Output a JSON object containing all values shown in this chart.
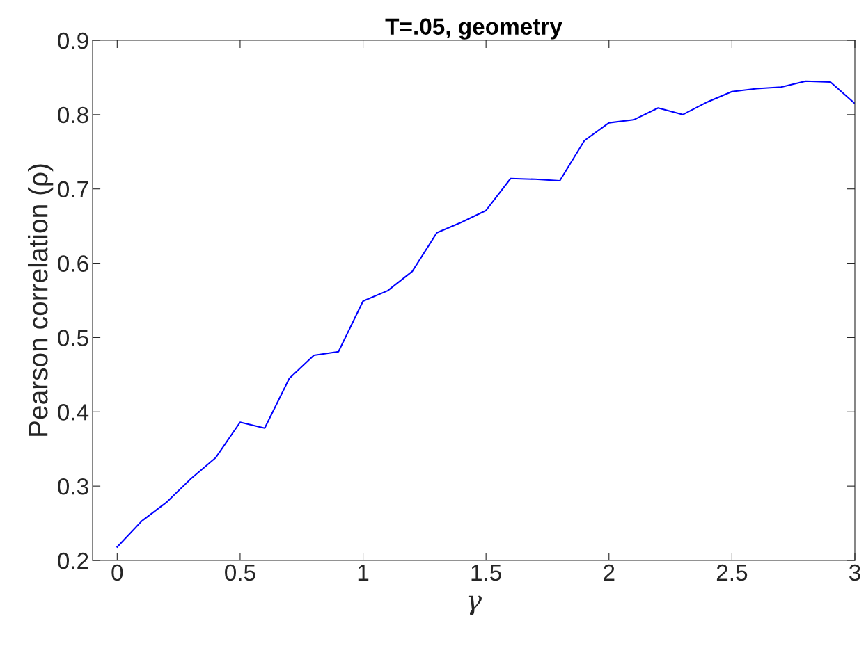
{
  "chart_data": {
    "type": "line",
    "title": "T=.05, geometry",
    "xlabel": "γ",
    "ylabel": "Pearson correlation (ρ)",
    "x": [
      0,
      0.1,
      0.2,
      0.3,
      0.4,
      0.5,
      0.6,
      0.7,
      0.8,
      0.9,
      1.0,
      1.1,
      1.2,
      1.3,
      1.4,
      1.5,
      1.6,
      1.7,
      1.8,
      1.9,
      2.0,
      2.1,
      2.2,
      2.3,
      2.4,
      2.5,
      2.6,
      2.7,
      2.8,
      2.9,
      3.0
    ],
    "series": [
      {
        "color": "#0000ff",
        "values": [
          0.218,
          0.253,
          0.278,
          0.31,
          0.338,
          0.386,
          0.378,
          0.445,
          0.476,
          0.481,
          0.549,
          0.563,
          0.589,
          0.641,
          0.655,
          0.671,
          0.714,
          0.713,
          0.711,
          0.765,
          0.789,
          0.793,
          0.809,
          0.8,
          0.817,
          0.831,
          0.835,
          0.837,
          0.845,
          0.844,
          0.815
        ]
      }
    ],
    "xlim": [
      -0.1,
      3
    ],
    "xticks": [
      0,
      0.5,
      1,
      1.5,
      2,
      2.5,
      3
    ],
    "ylim": [
      0.2,
      0.9
    ],
    "yticks": [
      0.2,
      0.3,
      0.4,
      0.5,
      0.6,
      0.7,
      0.8,
      0.9
    ],
    "grid": false,
    "marker": "none",
    "line_style": "solid"
  }
}
